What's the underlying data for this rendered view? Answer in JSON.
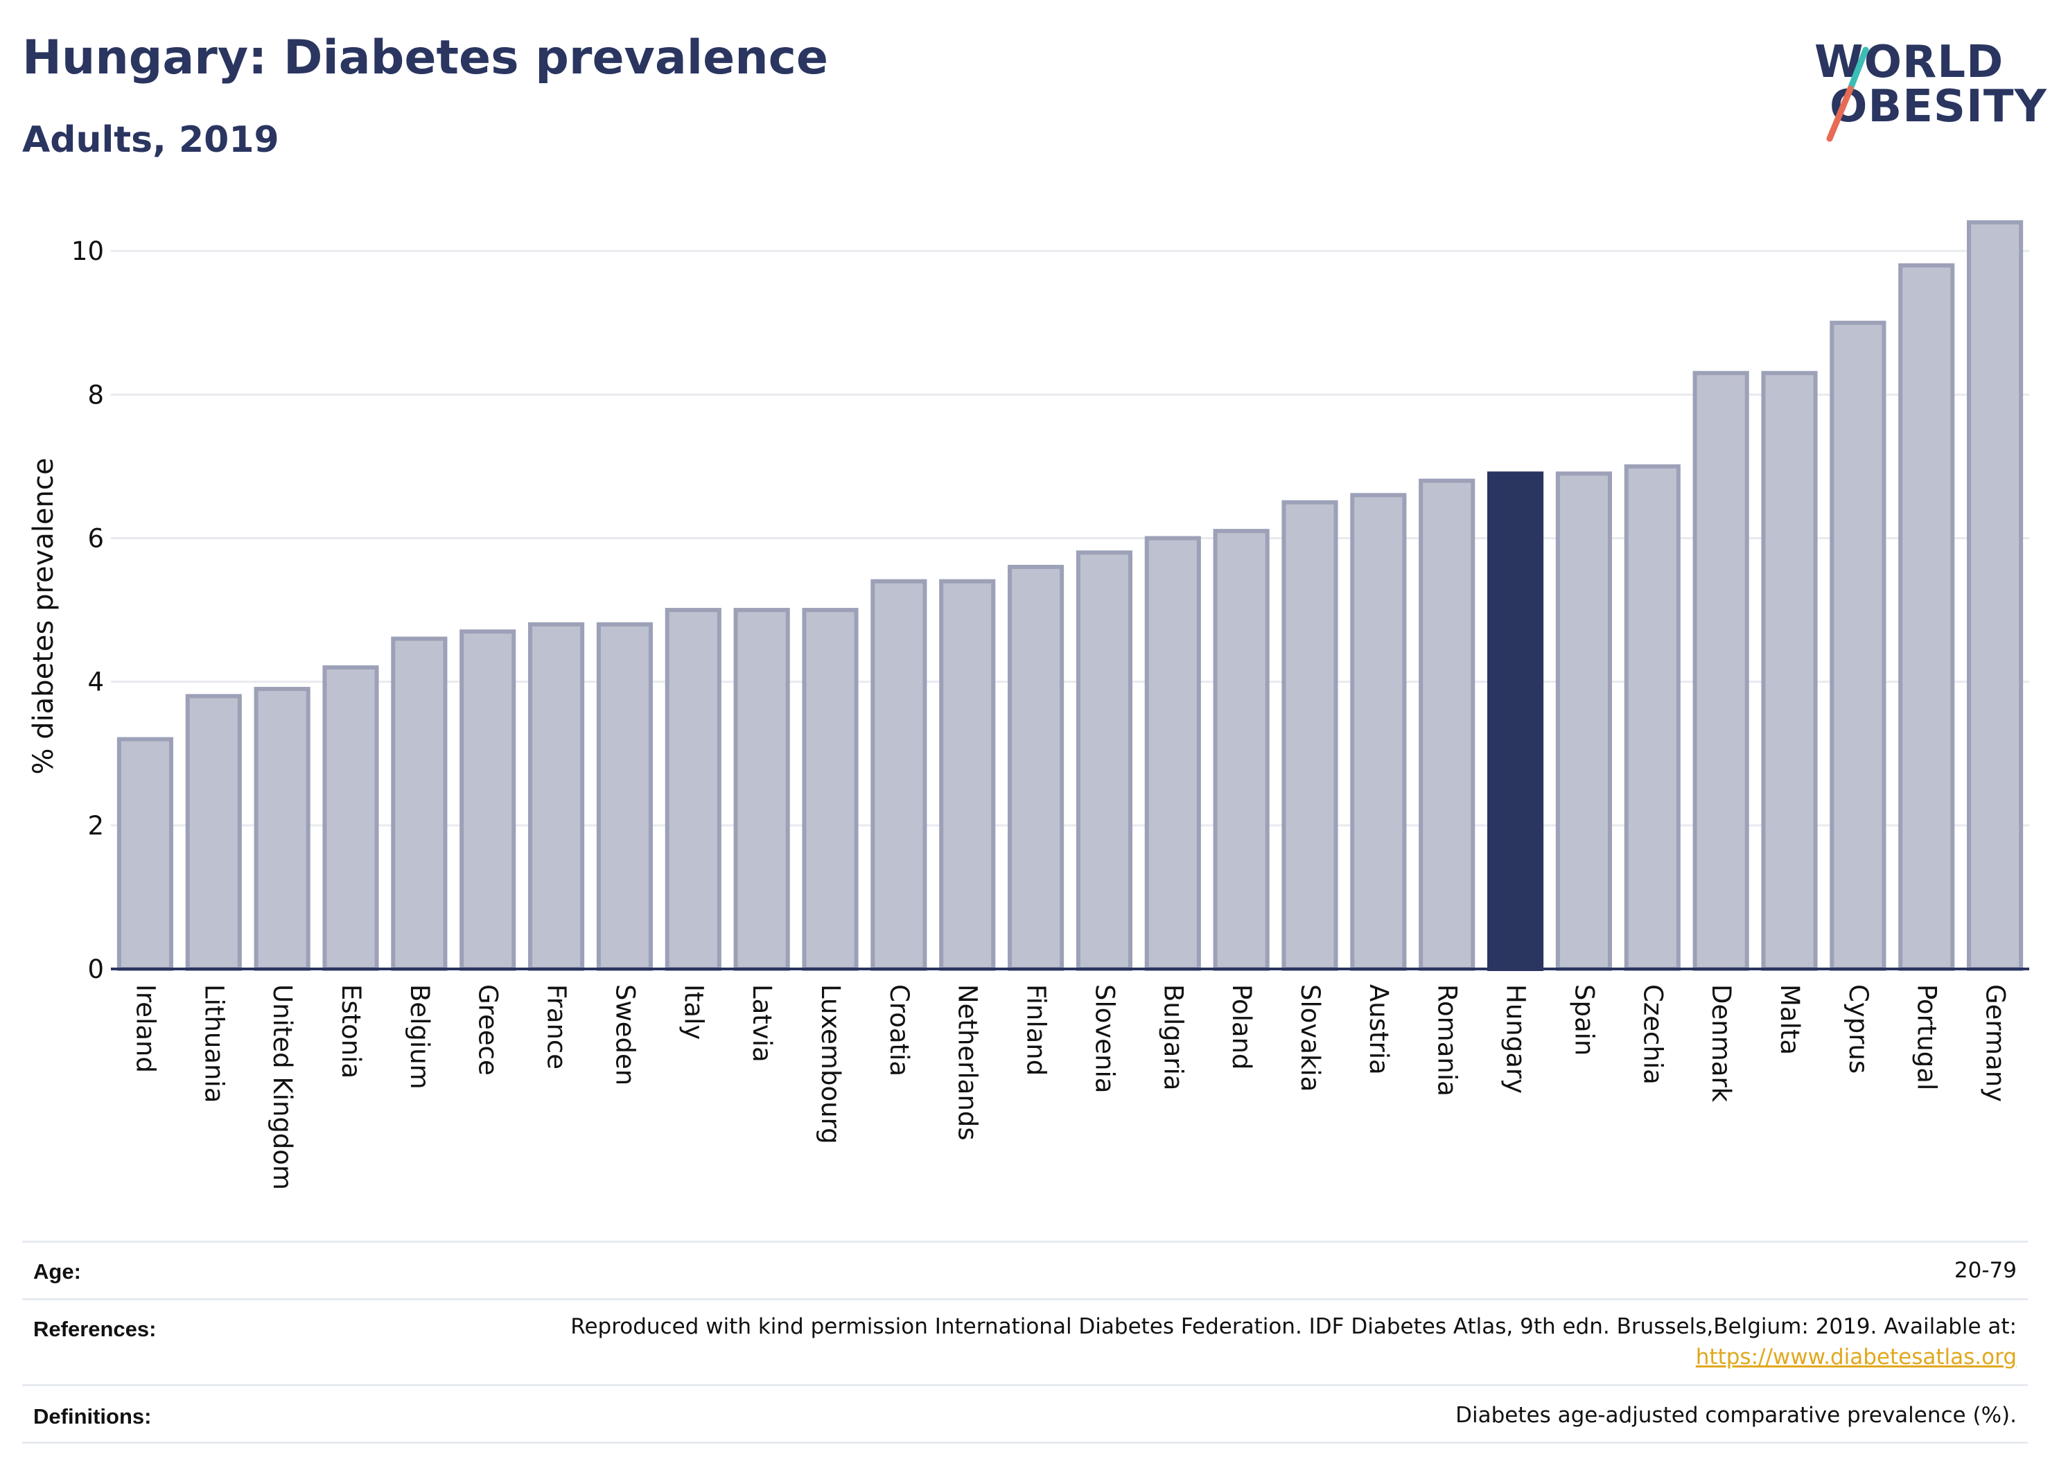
{
  "header": {
    "title": "Hungary: Diabetes prevalence",
    "subtitle": "Adults, 2019"
  },
  "logo": {
    "line1": "WORLD",
    "line2": "OBESITY"
  },
  "chart_data": {
    "type": "bar",
    "ylabel": "% diabetes prevalence",
    "ylim": [
      0,
      10.6
    ],
    "yticks": [
      0,
      2,
      4,
      6,
      8,
      10
    ],
    "grid": true,
    "highlight": "Hungary",
    "colors": {
      "bar": "#bec1cf",
      "bar_edge": "#9ca1b8",
      "highlight": "#2a3560"
    },
    "categories": [
      "Ireland",
      "Lithuania",
      "United Kingdom",
      "Estonia",
      "Belgium",
      "Greece",
      "France",
      "Sweden",
      "Italy",
      "Latvia",
      "Luxembourg",
      "Croatia",
      "Netherlands",
      "Finland",
      "Slovenia",
      "Bulgaria",
      "Poland",
      "Slovakia",
      "Austria",
      "Romania",
      "Hungary",
      "Spain",
      "Czechia",
      "Denmark",
      "Malta",
      "Cyprus",
      "Portugal",
      "Germany"
    ],
    "values": [
      3.2,
      3.8,
      3.9,
      4.2,
      4.6,
      4.7,
      4.8,
      4.8,
      5.0,
      5.0,
      5.0,
      5.4,
      5.4,
      5.6,
      5.8,
      6.0,
      6.1,
      6.5,
      6.6,
      6.8,
      6.9,
      6.9,
      7.0,
      8.3,
      8.3,
      9.0,
      9.8,
      10.4
    ]
  },
  "footer": {
    "age_label": "Age:",
    "age_value": "20-79",
    "references_label": "References:",
    "references_text": "Reproduced with kind permission International Diabetes Federation. IDF Diabetes Atlas, 9th edn. Brussels,Belgium: 2019. Available at:",
    "references_link": "https://www.diabetesatlas.org",
    "definitions_label": "Definitions:",
    "definitions_value": "Diabetes age-adjusted comparative prevalence (%)."
  }
}
